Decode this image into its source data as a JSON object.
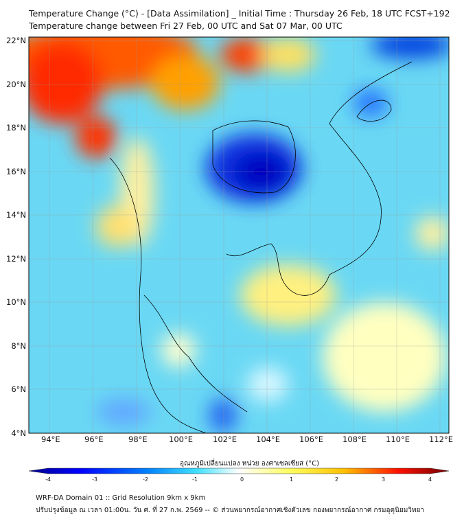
{
  "title": {
    "line1": "Temperature Change (°C) - [Data Assimilation] _ Initial Time : Thursday 26 Feb, 18 UTC FCST+192",
    "line2": "Temperature change between Fri 27 Feb, 00 UTC and Sat 07 Mar, 00 UTC"
  },
  "map": {
    "lat_labels": [
      "22°N",
      "20°N",
      "18°N",
      "16°N",
      "14°N",
      "12°N",
      "10°N",
      "8°N",
      "6°N",
      "4°N"
    ],
    "lon_labels": [
      "94°E",
      "96°E",
      "98°E",
      "100°E",
      "102°E",
      "104°E",
      "106°E",
      "108°E",
      "110°E",
      "112°E"
    ]
  },
  "colorbar": {
    "label": "อุณหภูมิเปลี่ยนแปลง หน่วย องศาเซลเซียส (°C)",
    "ticks": [
      "-4",
      "-3",
      "-2",
      "-1",
      "0",
      "1",
      "2",
      "3",
      "4"
    ],
    "colors": [
      "#00008b",
      "#0000ff",
      "#0070ff",
      "#00c8ff",
      "#ffffff",
      "#ffff60",
      "#ffc800",
      "#ff2000",
      "#7a0000"
    ]
  },
  "footer": {
    "line1": "WRF-DA Domain 01 :: Grid Resolution 9km x 9km",
    "line2": "ปรับปรุงข้อมูล ณ เวลา 01:00น. วัน ศ. ที่ 27 ก.พ. 2569 -- © ส่วนพยากรณ์อากาศเชิงตัวเลข กองพยากรณ์อากาศ กรมอุตุนิยมวิทยา"
  }
}
